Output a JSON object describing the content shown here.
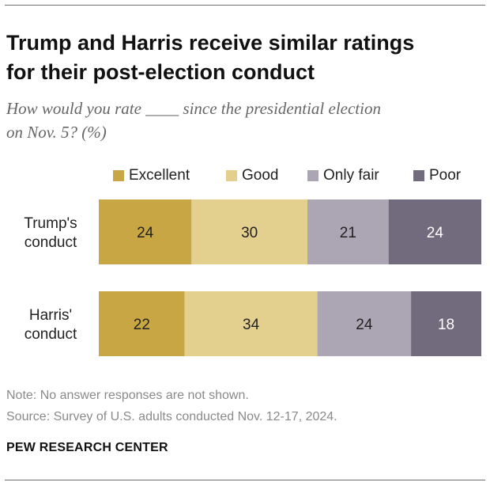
{
  "header": {
    "title_line1": "Trump and Harris receive similar ratings",
    "title_line2": "for their post-election conduct",
    "subtitle_line1": "How would you rate ____ since the presidential election",
    "subtitle_line2": "on Nov. 5? (%)"
  },
  "footer": {
    "note": "Note: No answer responses are not shown.",
    "source": "Source: Survey of U.S. adults conducted Nov. 12-17, 2024.",
    "brand": "PEW RESEARCH CENTER"
  },
  "chart_data": {
    "type": "bar",
    "orientation": "horizontal-stacked",
    "title": "Trump and Harris receive similar ratings for their post-election conduct",
    "categories": [
      {
        "line1": "Trump's",
        "line2": "conduct"
      },
      {
        "line1": "Harris'",
        "line2": "conduct"
      }
    ],
    "series": [
      {
        "name": "Excellent",
        "color": "#c9a644",
        "text_color": "#222222",
        "values": [
          24,
          22
        ]
      },
      {
        "name": "Good",
        "color": "#e3d08e",
        "text_color": "#222222",
        "values": [
          30,
          34
        ]
      },
      {
        "name": "Only fair",
        "color": "#aca6b4",
        "text_color": "#222222",
        "values": [
          21,
          24
        ]
      },
      {
        "name": "Poor",
        "color": "#726a7d",
        "text_color": "#ffffff",
        "values": [
          24,
          18
        ]
      }
    ],
    "xlim": [
      0,
      100
    ],
    "legend_position": "top",
    "grid": false
  }
}
